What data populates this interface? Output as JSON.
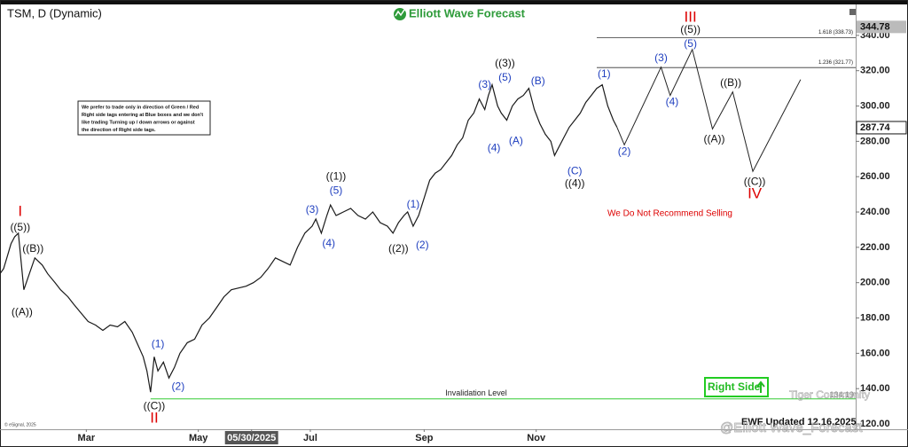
{
  "chart_data": {
    "type": "line",
    "title": "TSM, D (Dynamic)",
    "brand": "Elliott Wave Forecast",
    "color": "#1a1a1a",
    "xlim": [
      12,
      478
    ],
    "ylim": [
      117,
      356
    ],
    "xticks": [
      {
        "value": 59,
        "label": "Mar"
      },
      {
        "value": 120,
        "label": "May"
      },
      {
        "value": 149,
        "label": "05/30/2025"
      },
      {
        "value": 181,
        "label": "Jul"
      },
      {
        "value": 243,
        "label": "Sep"
      },
      {
        "value": 304,
        "label": "Nov"
      }
    ],
    "yticks": [
      {
        "value": 120,
        "label": "120.00"
      },
      {
        "value": 140,
        "label": "140.00"
      },
      {
        "value": 160,
        "label": "160.00"
      },
      {
        "value": 180,
        "label": "180.00"
      },
      {
        "value": 200,
        "label": "200.00"
      },
      {
        "value": 220,
        "label": "220.00"
      },
      {
        "value": 240,
        "label": "240.00"
      },
      {
        "value": 260,
        "label": "260.00"
      },
      {
        "value": 280,
        "label": "280.00"
      },
      {
        "value": 300,
        "label": "300.00"
      },
      {
        "value": 320,
        "label": "320.00"
      },
      {
        "value": 340,
        "label": "340.00"
      }
    ],
    "x": [
      12,
      14,
      16,
      18,
      20,
      22,
      25,
      28,
      31,
      35,
      38,
      42,
      45,
      49,
      52,
      56,
      60,
      64,
      68,
      72,
      76,
      80,
      84,
      87,
      90,
      92,
      94,
      96,
      98,
      101,
      104,
      107,
      110,
      114,
      118,
      122,
      126,
      130,
      134,
      138,
      142,
      146,
      150,
      154,
      158,
      162,
      166,
      170,
      174,
      178,
      182,
      184,
      187,
      190,
      192,
      195,
      199,
      203,
      207,
      211,
      215,
      219,
      223,
      226,
      229,
      232,
      234,
      237,
      240,
      243,
      246,
      249,
      252,
      255,
      258,
      261,
      264,
      267,
      270,
      273,
      276,
      278,
      280,
      283,
      285,
      288,
      291,
      294,
      297,
      300,
      303,
      306,
      309,
      312,
      314,
      316,
      319,
      322,
      325,
      328,
      331,
      334,
      337,
      340,
      343,
      346,
      348
    ],
    "values": [
      205,
      208,
      215,
      222,
      226,
      228,
      196,
      205,
      214,
      210,
      205,
      200,
      196,
      192,
      188,
      183,
      178,
      176,
      173,
      176,
      175,
      178,
      172,
      165,
      158,
      150,
      138,
      158,
      150,
      155,
      146,
      152,
      160,
      166,
      168,
      176,
      180,
      186,
      192,
      196,
      197,
      198,
      200,
      203,
      208,
      214,
      212,
      210,
      220,
      228,
      232,
      236,
      228,
      238,
      244,
      238,
      240,
      242,
      238,
      236,
      240,
      234,
      232,
      228,
      234,
      238,
      240,
      232,
      238,
      248,
      258,
      262,
      264,
      268,
      272,
      278,
      282,
      292,
      296,
      304,
      298,
      306,
      312,
      300,
      296,
      292,
      300,
      304,
      306,
      310,
      298,
      290,
      284,
      280,
      272,
      276,
      282,
      288,
      292,
      296,
      302,
      306,
      310,
      312,
      300,
      292,
      288
    ],
    "projection": {
      "color": "#222222",
      "x": [
        348,
        352,
        372,
        377,
        389,
        400,
        411,
        422,
        448
      ],
      "values": [
        288,
        278,
        322,
        306,
        332,
        287,
        308,
        263,
        315
      ]
    },
    "high_price": 344.78,
    "last_price": 287.74,
    "levels": [
      {
        "value": 338.73,
        "label": "1.618 (338.73)"
      },
      {
        "value": 321.77,
        "label": "1.236 (321.77)"
      }
    ],
    "invalidation": {
      "value": 134.19,
      "label": "Invalidation Level",
      "color": "#33cc33"
    },
    "annotations": [
      {
        "text": "I",
        "x": 23,
        "y": 240,
        "color": "#dd0000"
      },
      {
        "text": "((5))",
        "x": 23,
        "y": 231,
        "color": "#111111"
      },
      {
        "text": "((B))",
        "x": 30,
        "y": 219,
        "color": "#111111"
      },
      {
        "text": "((A))",
        "x": 24,
        "y": 183,
        "color": "#111111"
      },
      {
        "text": "((C))",
        "x": 96,
        "y": 130,
        "color": "#111111"
      },
      {
        "text": "II",
        "x": 96,
        "y": 123,
        "color": "#dd0000"
      },
      {
        "text": "(1)",
        "x": 98,
        "y": 165,
        "color": "#1f3fbf"
      },
      {
        "text": "(2)",
        "x": 109,
        "y": 141,
        "color": "#1f3fbf"
      },
      {
        "text": "(3)",
        "x": 182,
        "y": 241,
        "color": "#1f3fbf"
      },
      {
        "text": "(4)",
        "x": 191,
        "y": 222,
        "color": "#1f3fbf"
      },
      {
        "text": "((1))",
        "x": 195,
        "y": 260,
        "color": "#111111"
      },
      {
        "text": "(5)",
        "x": 195,
        "y": 252,
        "color": "#1f3fbf"
      },
      {
        "text": "((2))",
        "x": 229,
        "y": 219,
        "color": "#111111"
      },
      {
        "text": "(1)",
        "x": 237,
        "y": 244,
        "color": "#1f3fbf"
      },
      {
        "text": "(2)",
        "x": 242,
        "y": 221,
        "color": "#1f3fbf"
      },
      {
        "text": "(3)",
        "x": 276,
        "y": 312,
        "color": "#1f3fbf"
      },
      {
        "text": "(5)",
        "x": 287,
        "y": 316,
        "color": "#1f3fbf"
      },
      {
        "text": "((3))",
        "x": 287,
        "y": 324,
        "color": "#111111"
      },
      {
        "text": "(4)",
        "x": 281,
        "y": 276,
        "color": "#1f3fbf"
      },
      {
        "text": "(A)",
        "x": 293,
        "y": 280,
        "color": "#1f3fbf"
      },
      {
        "text": "(B)",
        "x": 305,
        "y": 314,
        "color": "#1f3fbf"
      },
      {
        "text": "(C)",
        "x": 325,
        "y": 263,
        "color": "#1f3fbf"
      },
      {
        "text": "((4))",
        "x": 325,
        "y": 256,
        "color": "#111111"
      },
      {
        "text": "(1)",
        "x": 341,
        "y": 318,
        "color": "#1f3fbf"
      },
      {
        "text": "(2)",
        "x": 352,
        "y": 274,
        "color": "#1f3fbf"
      },
      {
        "text": "(3)",
        "x": 372,
        "y": 327,
        "color": "#1f3fbf"
      },
      {
        "text": "(4)",
        "x": 378,
        "y": 302,
        "color": "#1f3fbf"
      },
      {
        "text": "(5)",
        "x": 388,
        "y": 335,
        "color": "#1f3fbf"
      },
      {
        "text": "((5))",
        "x": 388,
        "y": 343,
        "color": "#111111"
      },
      {
        "text": "III",
        "x": 388,
        "y": 350,
        "color": "#dd0000"
      },
      {
        "text": "((A))",
        "x": 401,
        "y": 281,
        "color": "#111111"
      },
      {
        "text": "((B))",
        "x": 410,
        "y": 313,
        "color": "#111111"
      },
      {
        "text": "((C))",
        "x": 423,
        "y": 257,
        "color": "#111111"
      },
      {
        "text": "IV",
        "x": 423,
        "y": 250,
        "color": "#dd0000"
      }
    ],
    "disclaimer": [
      "We prefer to trade only in direction of Green / Red",
      "Right side tags entering at Blue boxes and we don't",
      "like trading Turning up / down arrows or against",
      "the direction of Right side tags."
    ],
    "warning": "We Do Not Recommend Selling",
    "right_side_tag": "Right Side",
    "updated": "EWF Updated 12.16.2025",
    "copyright": "© eSignal, 2025",
    "watermarks": [
      "Tiger Community",
      "@Elliott Wave_Forecast"
    ]
  }
}
